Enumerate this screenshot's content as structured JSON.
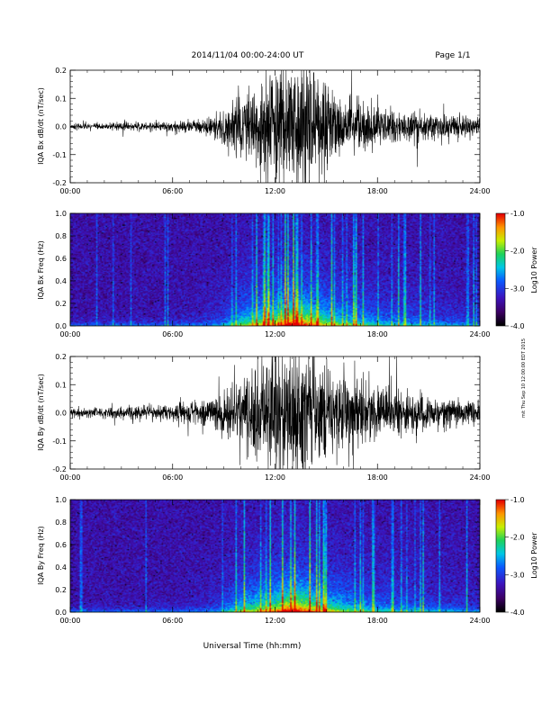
{
  "header": {
    "title": "2014/11/04  00:00-24:00 UT",
    "page": "Page 1/1"
  },
  "footer": {
    "xaxis_title": "Universal Time (hh:mm)",
    "side_note": "mit Thu Sep 10 12:00:00 EDT 2015"
  },
  "chart_data": [
    {
      "type": "line",
      "ylabel": "IQA Bx dB/dt (nT/sec)",
      "x_ticks": [
        "00:00",
        "06:00",
        "12:00",
        "18:00",
        "24:00"
      ],
      "y_ticks": [
        "0.2",
        "0.1",
        "0.0",
        "-0.1",
        "-0.2"
      ],
      "ylim": [
        -0.2,
        0.2
      ],
      "x_range_hours": [
        0,
        24
      ],
      "envelope_hours": [
        0,
        2,
        4,
        6,
        7,
        8,
        9,
        10,
        11,
        12,
        13,
        14,
        15,
        16,
        17,
        18,
        19,
        20,
        21,
        22,
        23,
        24
      ],
      "envelope_amplitude": [
        0.012,
        0.012,
        0.015,
        0.02,
        0.025,
        0.03,
        0.06,
        0.12,
        0.14,
        0.22,
        0.24,
        0.22,
        0.15,
        0.1,
        0.09,
        0.07,
        0.06,
        0.06,
        0.05,
        0.05,
        0.04,
        0.035
      ]
    },
    {
      "type": "heatmap",
      "ylabel": "IQA Bx Freq (Hz)",
      "x_ticks": [
        "00:00",
        "06:00",
        "12:00",
        "18:00",
        "24:00"
      ],
      "y_ticks": [
        "1.0",
        "0.8",
        "0.6",
        "0.4",
        "0.2",
        "0.0"
      ],
      "ylim": [
        0.0,
        1.0
      ],
      "colorbar": {
        "label": "Log10 Power",
        "ticks": [
          "-1.0",
          "-2.0",
          "-3.0",
          "-4.0"
        ],
        "range": [
          -4.0,
          -1.0
        ]
      }
    },
    {
      "type": "line",
      "ylabel": "IQA By dB/dt (nT/sec)",
      "x_ticks": [
        "00:00",
        "06:00",
        "12:00",
        "18:00",
        "24:00"
      ],
      "y_ticks": [
        "0.2",
        "0.1",
        "0.0",
        "-0.1",
        "-0.2"
      ],
      "ylim": [
        -0.2,
        0.2
      ],
      "x_range_hours": [
        0,
        24
      ],
      "envelope_hours": [
        0,
        2,
        4,
        6,
        7,
        8,
        9,
        10,
        11,
        12,
        13,
        14,
        15,
        16,
        17,
        18,
        19,
        20,
        21,
        22,
        23,
        24
      ],
      "envelope_amplitude": [
        0.02,
        0.02,
        0.025,
        0.03,
        0.04,
        0.05,
        0.08,
        0.14,
        0.18,
        0.24,
        0.26,
        0.24,
        0.18,
        0.14,
        0.12,
        0.1,
        0.09,
        0.08,
        0.07,
        0.06,
        0.05,
        0.04
      ]
    },
    {
      "type": "heatmap",
      "ylabel": "IQA By Freq (Hz)",
      "x_ticks": [
        "00:00",
        "06:00",
        "12:00",
        "18:00",
        "24:00"
      ],
      "y_ticks": [
        "1.0",
        "0.8",
        "0.6",
        "0.4",
        "0.2",
        "0.0"
      ],
      "ylim": [
        0.0,
        1.0
      ],
      "colorbar": {
        "label": "Log10 Power",
        "ticks": [
          "-1.0",
          "-2.0",
          "-3.0",
          "-4.0"
        ],
        "range": [
          -4.0,
          -1.0
        ]
      }
    }
  ]
}
